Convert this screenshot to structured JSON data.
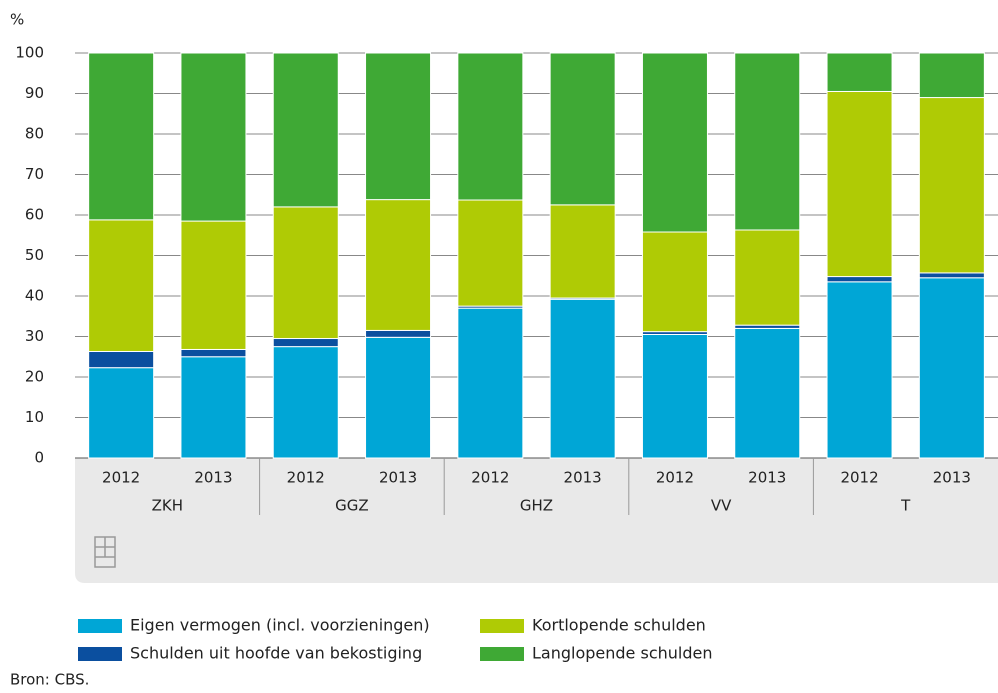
{
  "chart_data": {
    "type": "stacked_bar",
    "y_label": "%",
    "categories": [
      "2012",
      "2013",
      "2012",
      "2013",
      "2012",
      "2013",
      "2012",
      "2013",
      "2012",
      "2013"
    ],
    "groups": [
      "ZKH",
      "GGZ",
      "GHZ",
      "VV",
      "T"
    ],
    "series": [
      {
        "name": "Eigen vermogen (incl. voorzieningen)",
        "color": "#00a6d6",
        "values": [
          22.3,
          25,
          27.5,
          29.8,
          37,
          39.2,
          30.5,
          32,
          43.5,
          44.5
        ]
      },
      {
        "name": "Schulden uit hoofde van bekostiging",
        "color": "#0b4f9f",
        "values": [
          4,
          1.8,
          2,
          1.7,
          0.5,
          0.3,
          0.7,
          0.8,
          1.3,
          1.2
        ]
      },
      {
        "name": "Kortlopende schulden",
        "color": "#afcb05",
        "values": [
          32.5,
          31.7,
          32.5,
          32.3,
          26.2,
          23,
          24.6,
          23.5,
          45.7,
          43.3
        ]
      },
      {
        "name": "Langlopende schulden",
        "color": "#3fa935",
        "values": [
          41.2,
          41.5,
          38,
          36.2,
          36.3,
          37.5,
          44.2,
          43.7,
          9.5,
          11
        ]
      }
    ],
    "ylim": [
      0,
      100
    ],
    "yticks": [
      0,
      10,
      20,
      30,
      40,
      50,
      60,
      70,
      80,
      90,
      100
    ],
    "grid": true,
    "source": "Bron: CBS."
  }
}
